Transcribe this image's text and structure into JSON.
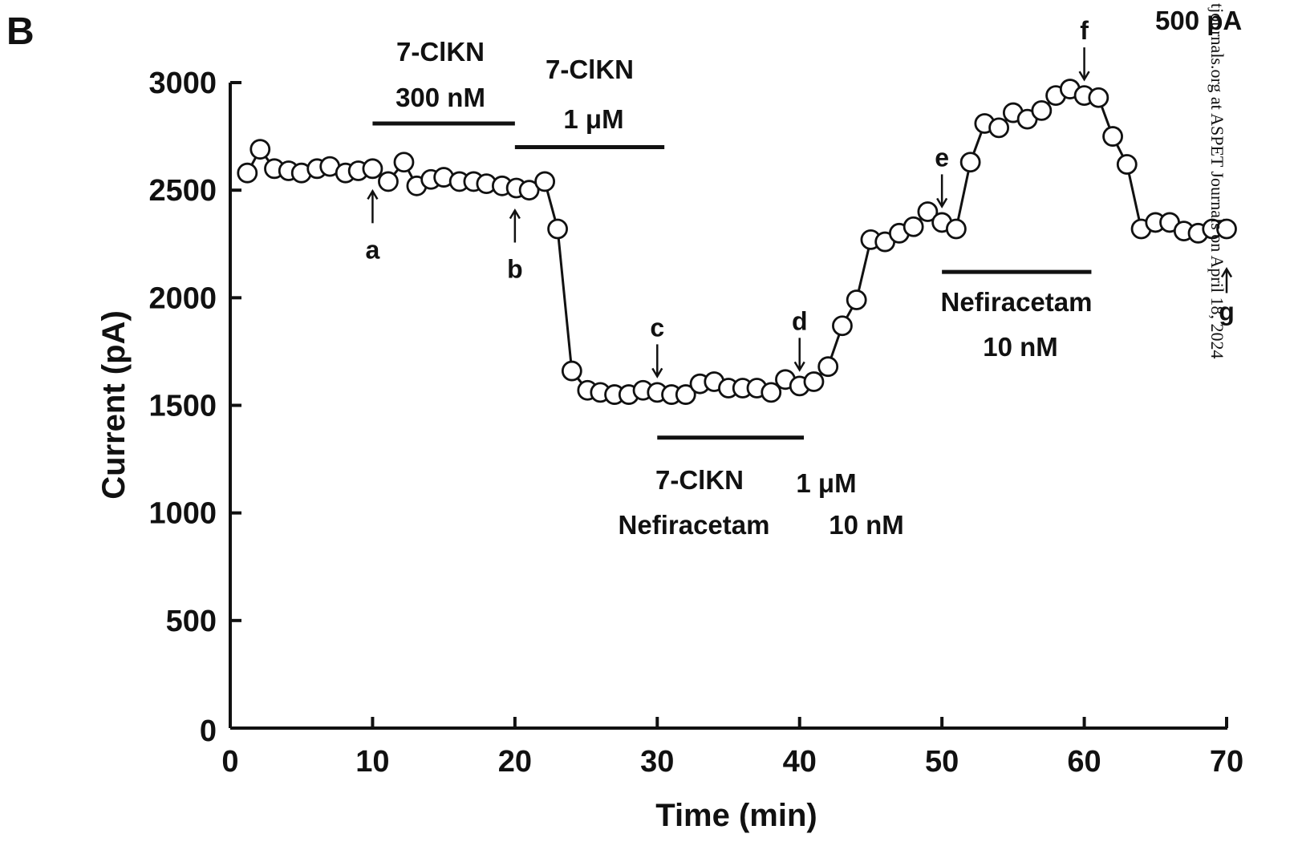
{
  "chart_data": {
    "type": "scatter",
    "panel_label": "B",
    "xlabel": "Time (min)",
    "ylabel": "Current (pA)",
    "xlim": [
      0,
      70
    ],
    "ylim": [
      0,
      3000
    ],
    "x_ticks": [
      0,
      10,
      20,
      30,
      40,
      50,
      60,
      70
    ],
    "y_ticks": [
      0,
      500,
      1000,
      1500,
      2000,
      2500,
      3000
    ],
    "grid": false,
    "connected": true,
    "series": [
      {
        "x": [
          1.2,
          2.1,
          3.1,
          4.1,
          5.0,
          6.1,
          7.0,
          8.1,
          9.0,
          10.0,
          11.1,
          12.2,
          13.1,
          14.1,
          15.0,
          16.1,
          17.1,
          18.0,
          19.1,
          20.1,
          21.0,
          22.1,
          23.0,
          24.0,
          25.1,
          26.0,
          27.0,
          28.0,
          29.0,
          30.0,
          31.0,
          32.0,
          33.0,
          34.0,
          35.0,
          36.0,
          37.0,
          38.0,
          39.0,
          40.0,
          41.0,
          42.0,
          43.0,
          44.0,
          45.0,
          46.0,
          47.0,
          48.0,
          49.0,
          50.0,
          51.0,
          52.0,
          53.0,
          54.0,
          55.0,
          56.0,
          57.0,
          58.0,
          59.0,
          60.0,
          61.0,
          62.0,
          63.0,
          64.0,
          65.0,
          66.0,
          67.0,
          68.0,
          69.0,
          70.0
        ],
        "values": [
          2580,
          2690,
          2600,
          2590,
          2580,
          2600,
          2610,
          2580,
          2590,
          2600,
          2540,
          2630,
          2520,
          2550,
          2560,
          2540,
          2540,
          2530,
          2520,
          2510,
          2500,
          2540,
          2320,
          1660,
          1570,
          1560,
          1550,
          1550,
          1570,
          1560,
          1550,
          1550,
          1600,
          1610,
          1580,
          1580,
          1580,
          1560,
          1620,
          1590,
          1610,
          1680,
          1870,
          1990,
          2270,
          2260,
          2300,
          2330,
          2400,
          2350,
          2320,
          2630,
          2810,
          2790,
          2860,
          2830,
          2870,
          2940,
          2970,
          2940,
          2930,
          2750,
          2620,
          2320,
          2350,
          2350,
          2310,
          2300,
          2320,
          2320
        ]
      }
    ],
    "treatment_bars": [
      {
        "label_line1": "7-ClKN",
        "label_line2": "300 nM",
        "x_start": 10,
        "x_end": 20,
        "y_level": 2810
      },
      {
        "label_line1": "7-ClKN",
        "label_line2": "1 μM",
        "x_start": 20,
        "x_end": 30.5,
        "y_level": 2700
      },
      {
        "label_line1": "7-ClKN",
        "label_line1_value": "1 μM",
        "label_line2": "Nefiracetam",
        "label_line2_value": "10 nM",
        "x_start": 30,
        "x_end": 40.3,
        "y_level": 1350
      },
      {
        "label_line1": "Nefiracetam",
        "label_line2": "10 nM",
        "x_start": 50,
        "x_end": 60.5,
        "y_level": 2120
      }
    ],
    "markers": [
      {
        "letter": "a",
        "x": 10,
        "direction": "up"
      },
      {
        "letter": "b",
        "x": 20,
        "direction": "up"
      },
      {
        "letter": "c",
        "x": 30,
        "direction": "down"
      },
      {
        "letter": "d",
        "x": 40,
        "direction": "down"
      },
      {
        "letter": "e",
        "x": 50,
        "direction": "down"
      },
      {
        "letter": "f",
        "x": 60,
        "direction": "down"
      },
      {
        "letter": "g",
        "x": 70,
        "direction": "up"
      }
    ],
    "corner_text": "500 pA",
    "watermark": "tjournals.org at ASPET Journals on April 18, 2024"
  }
}
